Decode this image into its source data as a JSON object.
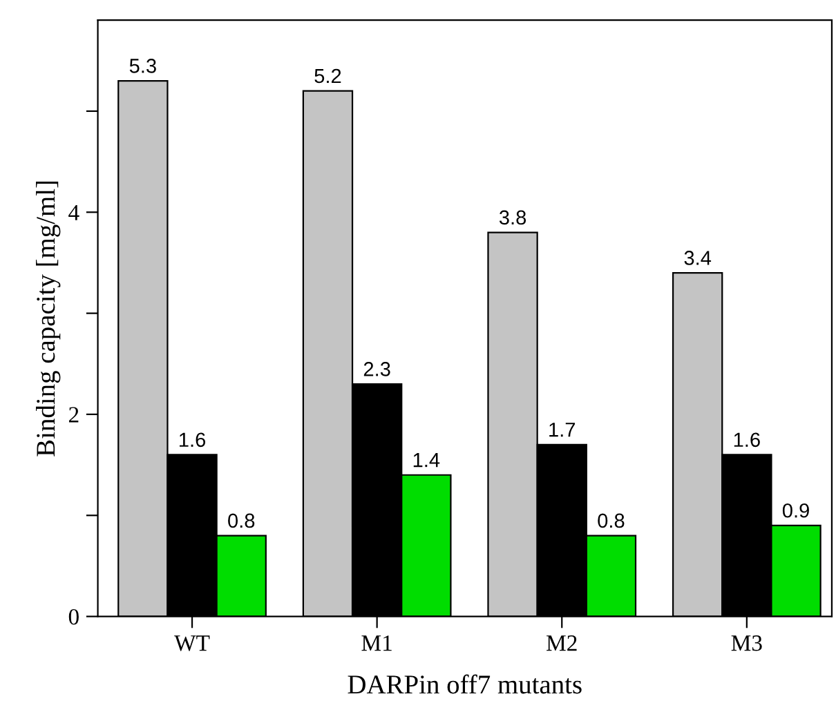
{
  "chart_data": {
    "type": "bar",
    "xlabel": "DARPin off7 mutants",
    "ylabel": "Binding capacity [mg/ml]",
    "categories": [
      "WT",
      "M1",
      "M2",
      "M3"
    ],
    "series": [
      {
        "color": "#c4c4c4",
        "values": [
          5.3,
          5.2,
          3.8,
          3.4
        ]
      },
      {
        "color": "#000000",
        "values": [
          1.6,
          2.3,
          1.7,
          1.6
        ]
      },
      {
        "color": "#00dd00",
        "values": [
          0.8,
          1.4,
          0.8,
          0.9
        ]
      }
    ],
    "ylim": [
      0,
      5.9
    ],
    "yticks": [
      0,
      {
        "value": 1,
        "label": null
      },
      2,
      {
        "value": 3,
        "label": null
      },
      4,
      {
        "value": 5,
        "label": null
      }
    ],
    "data_labels": true,
    "grid": false,
    "legend": false
  }
}
